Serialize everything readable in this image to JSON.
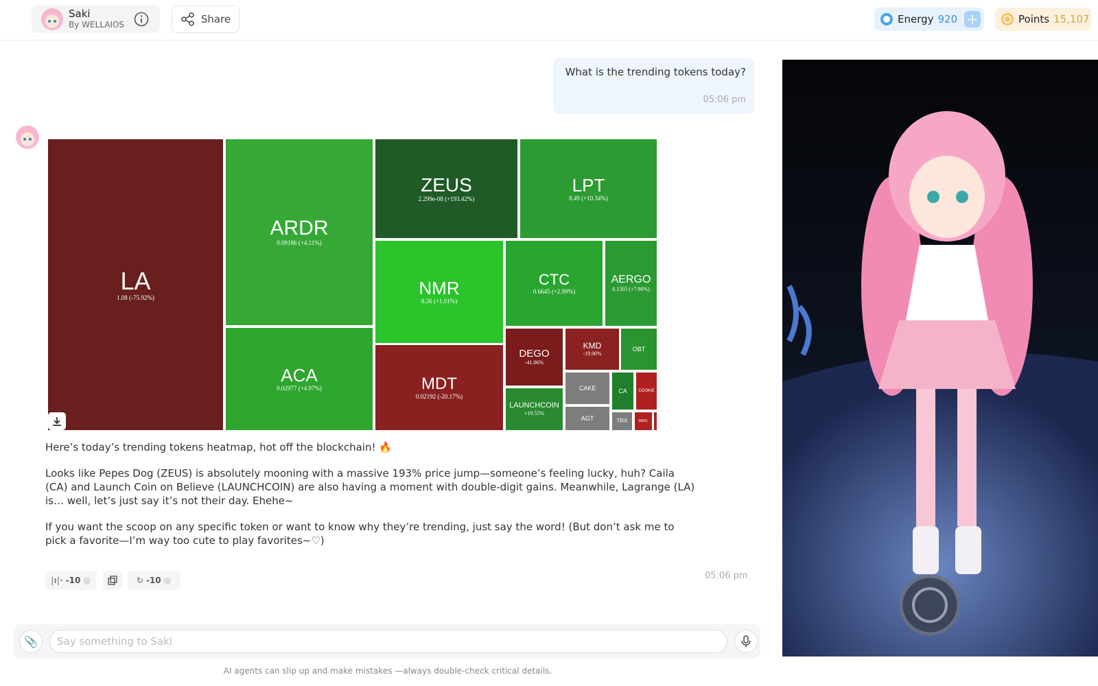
{
  "header": {
    "agent_name": "Saki",
    "agent_by": "By WELLAIOS",
    "share": "Share",
    "energy_label": "Energy",
    "energy_value": "920",
    "points_label": "Points",
    "points_value": "15,107"
  },
  "chat": {
    "user_message": {
      "text": "What is the trending tokens today?",
      "time": "05:06 pm"
    },
    "heatmap": {
      "tiles": [
        {
          "symbol": "LA",
          "detail": "1.08 (-75.92%)"
        },
        {
          "symbol": "ARDR",
          "detail": "0.09186 (+4.11%)"
        },
        {
          "symbol": "ACA",
          "detail": "0.02977 (+4.97%)"
        },
        {
          "symbol": "ZEUS",
          "detail": "2.299e-08 (+193.42%)"
        },
        {
          "symbol": "LPT",
          "detail": "8.49 (+10.34%)"
        },
        {
          "symbol": "NMR",
          "detail": "8.26 (+1.01%)"
        },
        {
          "symbol": "MDT",
          "detail": "0.02192 (-20.17%)"
        },
        {
          "symbol": "CTC",
          "detail": "0.6645 (+2.99%)"
        },
        {
          "symbol": "AERGO",
          "detail": "0.1303 (+7.90%)"
        },
        {
          "symbol": "DEGO",
          "detail": "-41.06%"
        },
        {
          "symbol": "KMD",
          "detail": "-19.90%"
        },
        {
          "symbol": "OBT"
        },
        {
          "symbol": "CAKE"
        },
        {
          "symbol": "CA"
        },
        {
          "symbol": "COOKIE"
        },
        {
          "symbol": "LAUNCHCOIN",
          "detail": "+19.55%"
        },
        {
          "symbol": "AGT"
        },
        {
          "symbol": "TRX"
        },
        {
          "symbol": "MERL"
        }
      ]
    },
    "reply": {
      "paragraphs": [
        "Here’s today’s trending tokens heatmap, hot off the blockchain! 🔥",
        "Looks like Pepes Dog (ZEUS) is absolutely mooning with a massive 193% price jump—someone’s feeling lucky, huh? Caila (CA) and Launch Coin on Believe (LAUNCHCOIN) are also having a moment with double-digit gains. Meanwhile, Lagrange (LA) is… well, let’s just say it’s not their day. Ehehe~",
        "If you want the scoop on any specific token or want to know why they’re trending, just say the word! (But don’t ask me to pick a favorite—I’m way too cute to play favorites~♡)"
      ],
      "actions": [
        "-10",
        "-10"
      ],
      "time": "05:06 pm"
    }
  },
  "input": {
    "placeholder": "Say something to Saki"
  },
  "footer": "AI agents can slip up and make mistakes —always double-check critical details."
}
